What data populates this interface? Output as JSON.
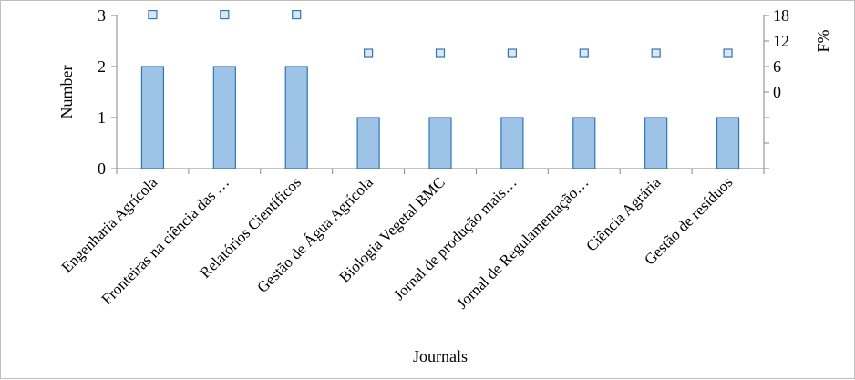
{
  "chart_data": {
    "type": "bar",
    "xlabel": "Journals",
    "ylabel": "Number",
    "y2label": "F%",
    "categories": [
      "Engenharia Agrícola",
      "Fronteiras na ciência das …",
      "Relatórios Científicos",
      "Gestão de Água Agrícola",
      "Biologia Vegetal BMC",
      "Jornal de produção mais…",
      "Jornal de Regulamentação…",
      "Ciência Agrária",
      "Gestão de resíduos"
    ],
    "series": [
      {
        "values": [
          2,
          2,
          2,
          1,
          1,
          1,
          1,
          1,
          1
        ],
        "axis": "left",
        "kind": "bar"
      },
      {
        "values": [
          18.2,
          18.2,
          18.2,
          9.1,
          9.1,
          9.1,
          9.1,
          9.1,
          9.1
        ],
        "axis": "right",
        "kind": "marker"
      }
    ],
    "ylim": [
      0,
      3
    ],
    "yticks": [
      "0",
      "1",
      "2",
      "3"
    ],
    "y2_ticks": [
      "18",
      "12",
      "6",
      "0"
    ],
    "grid": false,
    "legend": "none",
    "colors": {
      "bar_fill": "#9dc3e6",
      "bar_stroke": "#2e75b6",
      "marker_fill": "#dae8f6",
      "marker_stroke": "#2e75b6",
      "axis": "#868686"
    }
  }
}
